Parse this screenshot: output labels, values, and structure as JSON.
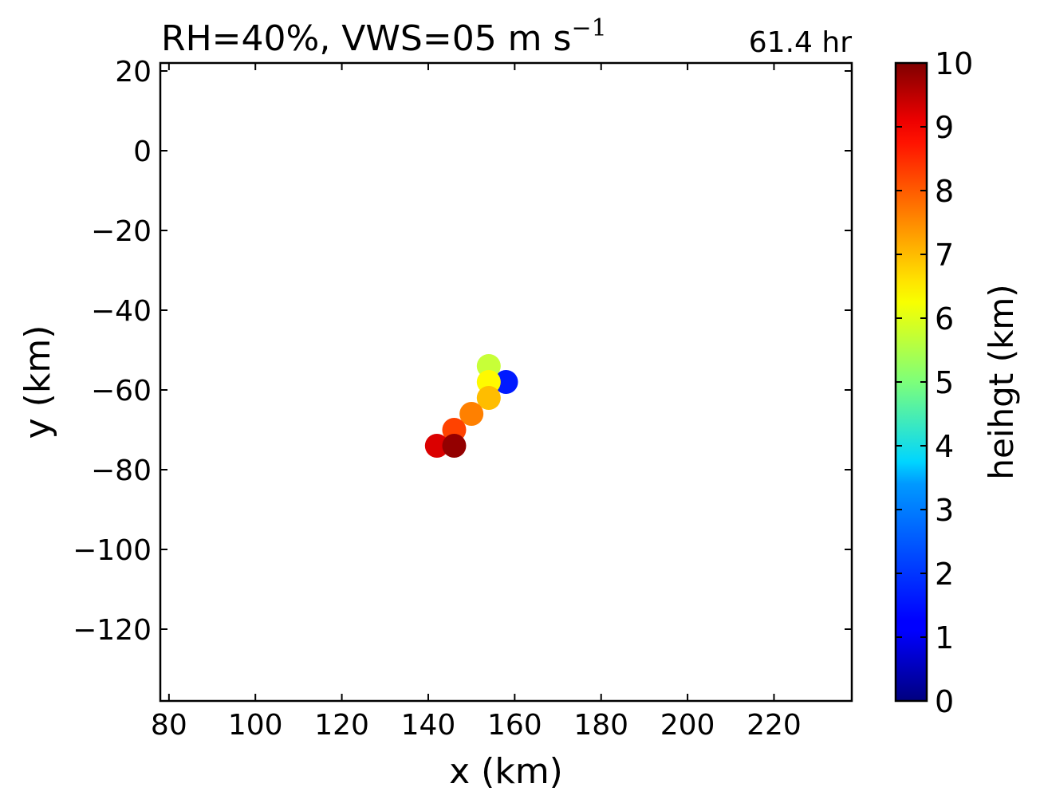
{
  "chart_data": {
    "type": "scatter",
    "title": "RH=40%, VWS=05 m s",
    "title_superscript": "−1",
    "annotation": "61.4 hr",
    "annotation_color": "#0000ff",
    "xlabel": "x (km)",
    "ylabel": "y (km)",
    "xlim": [
      78,
      238
    ],
    "ylim": [
      -138,
      22
    ],
    "xticks": [
      80,
      100,
      120,
      140,
      160,
      180,
      200,
      220
    ],
    "yticks": [
      20,
      0,
      -20,
      -40,
      -60,
      -80,
      -100,
      -120
    ],
    "xtick_labels": [
      "80",
      "100",
      "120",
      "140",
      "160",
      "180",
      "200",
      "220"
    ],
    "ytick_labels": [
      "20",
      "0",
      "−20",
      "−40",
      "−60",
      "−80",
      "−100",
      "−120"
    ],
    "grid": false,
    "colormap": "jet",
    "colorbar": {
      "label": "heihgt (km)",
      "range": [
        0,
        10
      ],
      "ticks": [
        0,
        1,
        2,
        3,
        4,
        5,
        6,
        7,
        8,
        9,
        10
      ],
      "tick_labels": [
        "0",
        "1",
        "2",
        "3",
        "4",
        "5",
        "6",
        "7",
        "8",
        "9",
        "10"
      ]
    },
    "points": [
      {
        "x": 158,
        "y": -58,
        "height": 1.5
      },
      {
        "x": 154,
        "y": -54,
        "height": 5.7
      },
      {
        "x": 154,
        "y": -58,
        "height": 6.3
      },
      {
        "x": 154,
        "y": -62,
        "height": 6.9
      },
      {
        "x": 150,
        "y": -66,
        "height": 7.5
      },
      {
        "x": 146,
        "y": -70,
        "height": 8.1
      },
      {
        "x": 142,
        "y": -74,
        "height": 9.1
      },
      {
        "x": 146,
        "y": -74,
        "height": 9.8
      }
    ]
  }
}
